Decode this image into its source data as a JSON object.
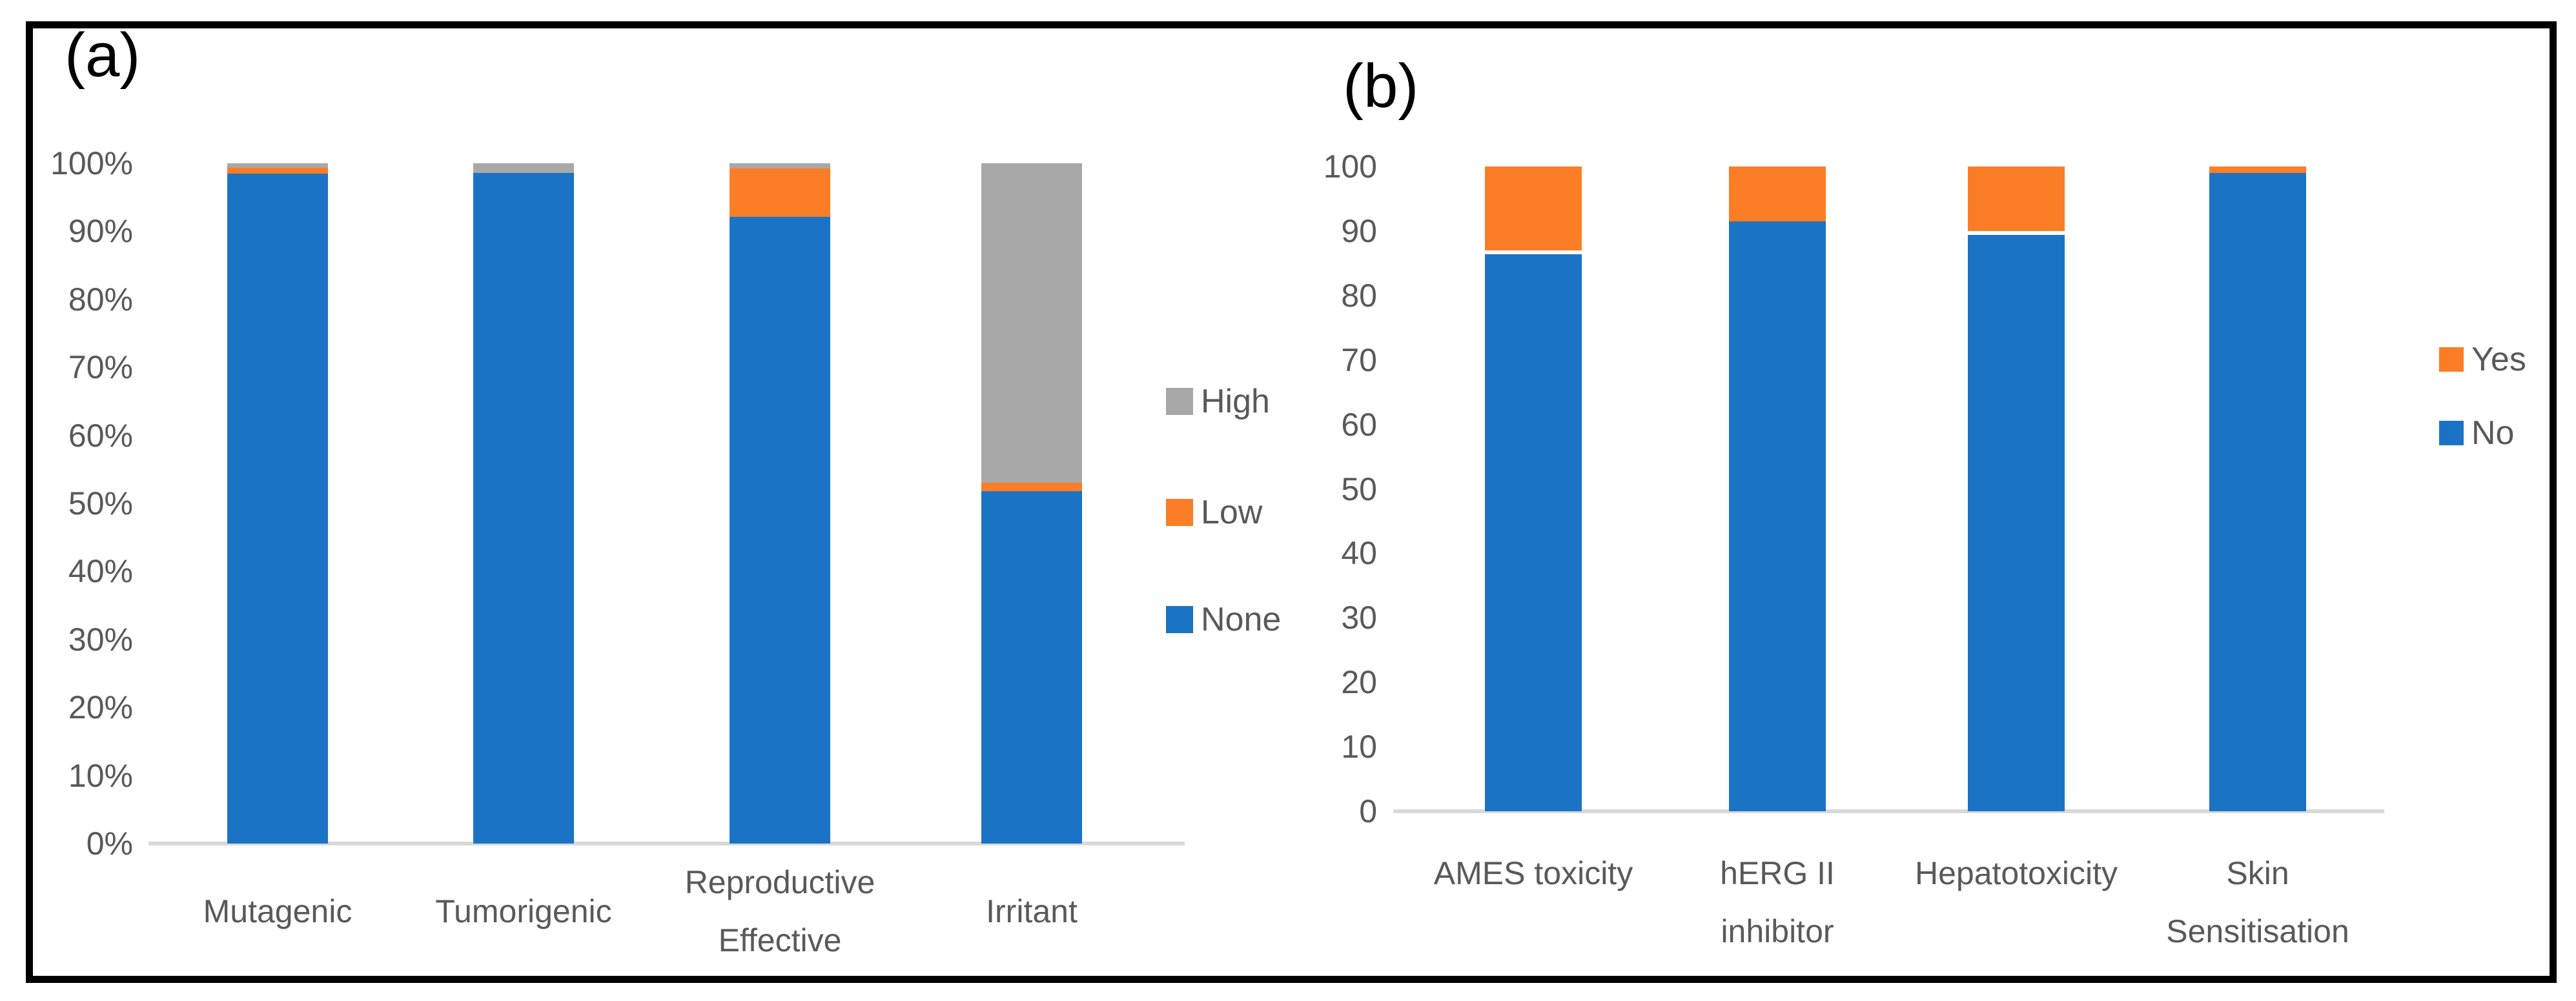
{
  "figure": {
    "panel_a_label": "(a)",
    "panel_b_label": "(b)"
  },
  "colors": {
    "blue": "#1b73c6",
    "orange": "#fb7d25",
    "gray": "#a8a8a8",
    "axis_line": "#d9d9d9",
    "tick_text": "#595959",
    "panel_label_text": "#000000"
  },
  "chart_data": [
    {
      "type": "bar",
      "stacked": true,
      "panel": "(a)",
      "categories": [
        "Mutagenic",
        "Tumorigenic",
        "Reproductive\nEffective",
        "Irritant"
      ],
      "series": [
        {
          "name": "None",
          "color": "#1b73c6",
          "values": [
            98.5,
            98.6,
            92.1,
            51.8
          ]
        },
        {
          "name": "Low",
          "color": "#fb7d25",
          "values": [
            0.8,
            0.0,
            7.1,
            1.2
          ]
        },
        {
          "name": "High",
          "color": "#a8a8a8",
          "values": [
            0.7,
            1.4,
            0.8,
            47.0
          ]
        }
      ],
      "yticks": [
        "100%",
        "90%",
        "80%",
        "70%",
        "60%",
        "50%",
        "40%",
        "30%",
        "20%",
        "10%",
        "0%"
      ],
      "ylim": [
        0,
        100
      ],
      "grid": false,
      "legend_order": [
        "High",
        "Low",
        "None"
      ],
      "legend_position": "right"
    },
    {
      "type": "bar",
      "stacked": true,
      "panel": "(b)",
      "categories": [
        "AMES toxicity",
        "hERG II\ninhibitor",
        "Hepatotoxicity",
        "Skin\nSensitisation"
      ],
      "series": [
        {
          "name": "No",
          "color": "#1b73c6",
          "values": [
            86.4,
            91.5,
            89.4,
            99.0
          ]
        },
        {
          "name": "Yes",
          "color": "#fb7d25",
          "values": [
            13.6,
            8.5,
            10.6,
            1.0
          ]
        }
      ],
      "yticks": [
        "100",
        "90",
        "80",
        "70",
        "60",
        "50",
        "40",
        "30",
        "20",
        "10",
        "0"
      ],
      "ylim": [
        0,
        100
      ],
      "grid": false,
      "seam_gaps": [
        0.6,
        0,
        0.6,
        0
      ],
      "legend_order": [
        "Yes",
        "No"
      ],
      "legend_position": "right"
    }
  ]
}
